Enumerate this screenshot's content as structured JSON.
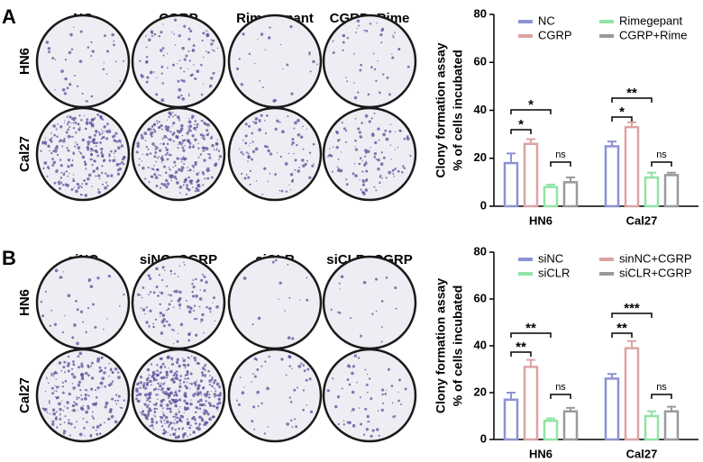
{
  "panels": [
    {
      "label": "A",
      "columns": [
        "NC",
        "CGRP",
        "Rimegepant",
        "CGRP+Rime"
      ],
      "rows": [
        "HN6",
        "Cal27"
      ]
    },
    {
      "label": "B",
      "columns": [
        "siNC",
        "siNC+CGRP",
        "siCLR",
        "siCLR+CGRP"
      ],
      "rows": [
        "HN6",
        "Cal27"
      ]
    }
  ],
  "chart_data": [
    {
      "type": "bar",
      "y_label": [
        "Clony formation assay",
        "% of cells incubated"
      ],
      "categories": [
        "HN6",
        "Cal27"
      ],
      "ylim": [
        0,
        80
      ],
      "yticks": [
        0,
        20,
        40,
        60,
        80
      ],
      "series": [
        {
          "name": "NC",
          "color": "#8d92d3",
          "values": [
            18,
            25
          ],
          "errors": [
            4,
            2
          ]
        },
        {
          "name": "CGRP",
          "color": "#dca3a3",
          "values": [
            26,
            33
          ],
          "errors": [
            2,
            2
          ]
        },
        {
          "name": "Rimegepant",
          "color": "#90e4a4",
          "values": [
            8,
            12
          ],
          "errors": [
            1,
            2
          ]
        },
        {
          "name": "CGRP+Rime",
          "color": "#9a9a9a",
          "values": [
            10,
            13
          ],
          "errors": [
            2,
            1
          ]
        }
      ],
      "annotations": [
        "*",
        "*",
        "ns",
        "*",
        "**",
        "ns"
      ]
    },
    {
      "type": "bar",
      "y_label": [
        "Clony formation assay",
        "% of cells incubated"
      ],
      "categories": [
        "HN6",
        "Cal27"
      ],
      "ylim": [
        0,
        80
      ],
      "yticks": [
        0,
        20,
        40,
        60,
        80
      ],
      "series": [
        {
          "name": "siNC",
          "color": "#8d92d3",
          "values": [
            17,
            26
          ],
          "errors": [
            3,
            2
          ]
        },
        {
          "name": "sinNC+CGRP",
          "color": "#dca3a3",
          "values": [
            31,
            39
          ],
          "errors": [
            3,
            3
          ]
        },
        {
          "name": "siCLR",
          "color": "#90e4a4",
          "values": [
            8,
            10
          ],
          "errors": [
            1,
            2
          ]
        },
        {
          "name": "siCLR+CGRP",
          "color": "#9a9a9a",
          "values": [
            12,
            12
          ],
          "errors": [
            1.5,
            2
          ]
        }
      ],
      "annotations": [
        "**",
        "**",
        "ns",
        "**",
        "***",
        "ns"
      ]
    }
  ]
}
